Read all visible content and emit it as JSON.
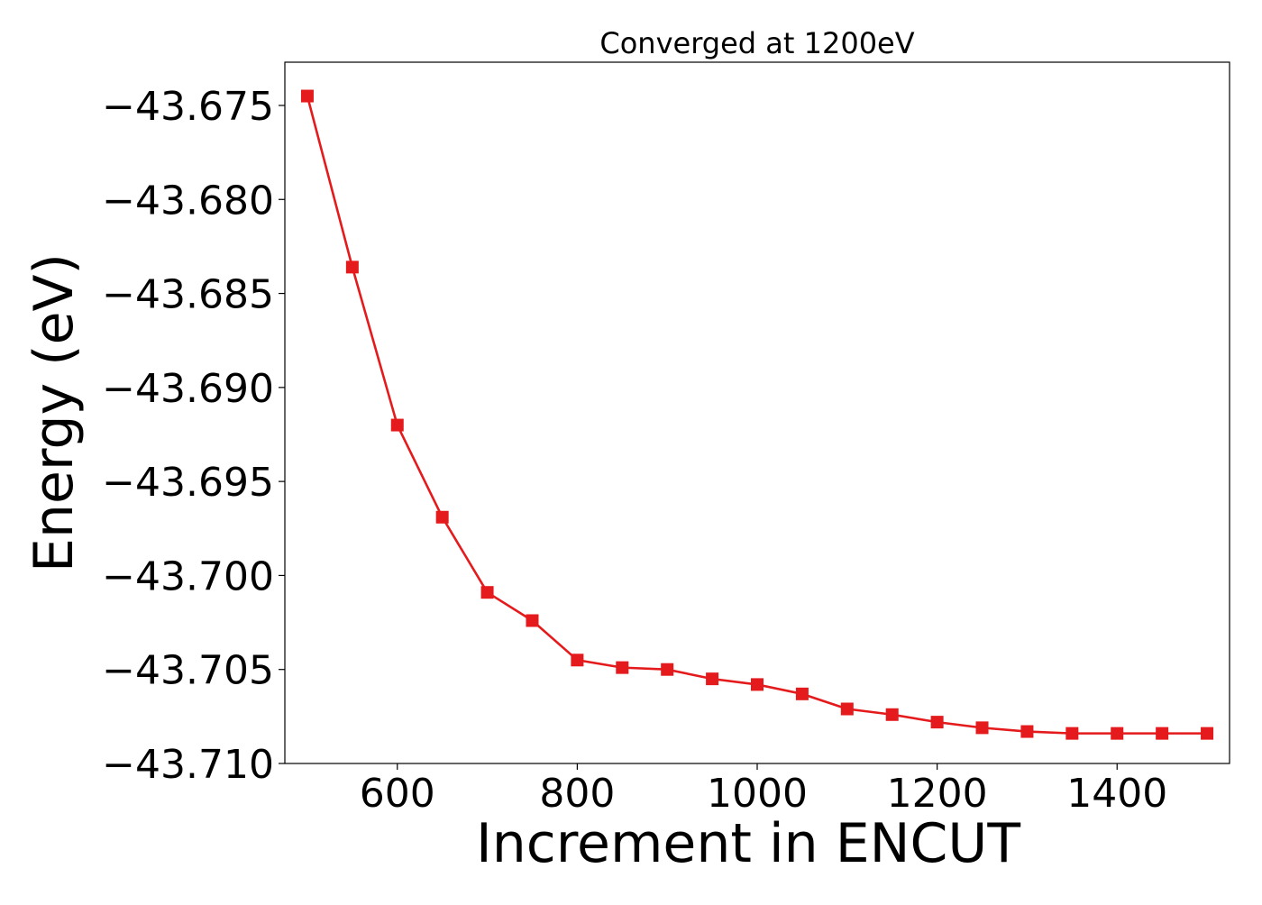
{
  "chart_data": {
    "type": "line",
    "title": "Converged at 1200eV",
    "xlabel": "Increment in ENCUT",
    "ylabel": "Energy (eV)",
    "xlim": [
      475,
      1525
    ],
    "ylim": [
      -43.71,
      -43.6727
    ],
    "xticks": [
      600,
      800,
      1000,
      1200,
      1400
    ],
    "yticks": [
      -43.675,
      -43.68,
      -43.685,
      -43.69,
      -43.695,
      -43.7,
      -43.705,
      -43.71
    ],
    "ytick_labels": [
      "−43.675",
      "−43.680",
      "−43.685",
      "−43.690",
      "−43.695",
      "−43.700",
      "−43.705",
      "−43.710"
    ],
    "grid": false,
    "series": [
      {
        "color": "#e41a1c",
        "marker": "square",
        "x": [
          500,
          550,
          600,
          650,
          700,
          750,
          800,
          850,
          900,
          950,
          1000,
          1050,
          1100,
          1150,
          1200,
          1250,
          1300,
          1350,
          1400,
          1450,
          1500
        ],
        "y": [
          -43.6745,
          -43.6836,
          -43.692,
          -43.6969,
          -43.7009,
          -43.7024,
          -43.7045,
          -43.7049,
          -43.705,
          -43.7055,
          -43.7058,
          -43.7063,
          -43.7071,
          -43.7074,
          -43.7078,
          -43.7081,
          -43.7083,
          -43.7084,
          -43.7084,
          -43.7084,
          -43.7084
        ]
      }
    ]
  }
}
